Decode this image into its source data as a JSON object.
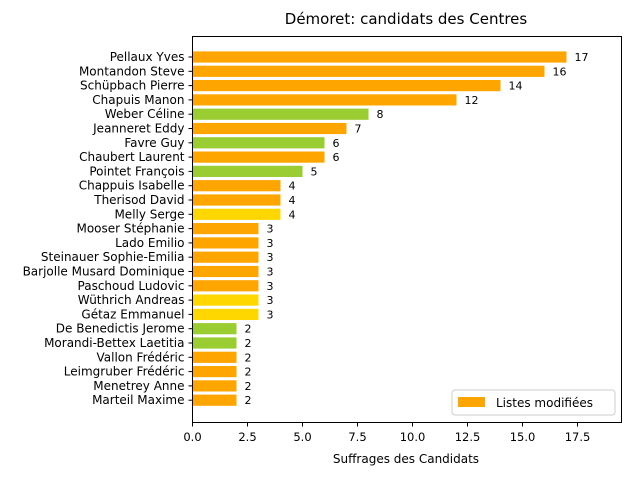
{
  "chart_data": {
    "type": "bar",
    "orientation": "horizontal",
    "title": "Démoret: candidats des Centres",
    "xlabel": "Suffrages des Candidats",
    "ylabel": "",
    "xlim": [
      0,
      19.5
    ],
    "xticks": [
      "0.0",
      "2.5",
      "5.0",
      "7.5",
      "10.0",
      "12.5",
      "15.0",
      "17.5"
    ],
    "grid": false,
    "legend": {
      "position": "lower-right",
      "entries": [
        {
          "label": "Listes modifiées",
          "color": "#FFA500"
        }
      ]
    },
    "colors": {
      "orange": "#FFA500",
      "green": "#9ACD32",
      "gold": "#FFD700"
    },
    "bars": [
      {
        "name": "Pellaux Yves",
        "value": 17,
        "color": "orange"
      },
      {
        "name": "Montandon Steve",
        "value": 16,
        "color": "orange"
      },
      {
        "name": "Schüpbach Pierre",
        "value": 14,
        "color": "orange"
      },
      {
        "name": "Chapuis Manon",
        "value": 12,
        "color": "orange"
      },
      {
        "name": "Weber Céline",
        "value": 8,
        "color": "green"
      },
      {
        "name": "Jeanneret Eddy",
        "value": 7,
        "color": "orange"
      },
      {
        "name": "Favre Guy",
        "value": 6,
        "color": "green"
      },
      {
        "name": "Chaubert Laurent",
        "value": 6,
        "color": "orange"
      },
      {
        "name": "Pointet François",
        "value": 5,
        "color": "green"
      },
      {
        "name": "Chappuis Isabelle",
        "value": 4,
        "color": "orange"
      },
      {
        "name": "Therisod David",
        "value": 4,
        "color": "orange"
      },
      {
        "name": "Melly Serge",
        "value": 4,
        "color": "gold"
      },
      {
        "name": "Mooser Stéphanie",
        "value": 3,
        "color": "orange"
      },
      {
        "name": "Lado Emilio",
        "value": 3,
        "color": "orange"
      },
      {
        "name": "Steinauer Sophie-Emilia",
        "value": 3,
        "color": "orange"
      },
      {
        "name": "Barjolle Musard Dominique",
        "value": 3,
        "color": "orange"
      },
      {
        "name": "Paschoud Ludovic",
        "value": 3,
        "color": "orange"
      },
      {
        "name": "Wüthrich Andreas",
        "value": 3,
        "color": "gold"
      },
      {
        "name": "Gétaz Emmanuel",
        "value": 3,
        "color": "gold"
      },
      {
        "name": "De Benedictis Jerome",
        "value": 2,
        "color": "green"
      },
      {
        "name": "Morandi-Bettex Laetitia",
        "value": 2,
        "color": "green"
      },
      {
        "name": "Vallon Frédéric",
        "value": 2,
        "color": "orange"
      },
      {
        "name": "Leimgruber Frédéric",
        "value": 2,
        "color": "orange"
      },
      {
        "name": "Menetrey Anne",
        "value": 2,
        "color": "orange"
      },
      {
        "name": "Marteil Maxime",
        "value": 2,
        "color": "orange"
      }
    ]
  }
}
